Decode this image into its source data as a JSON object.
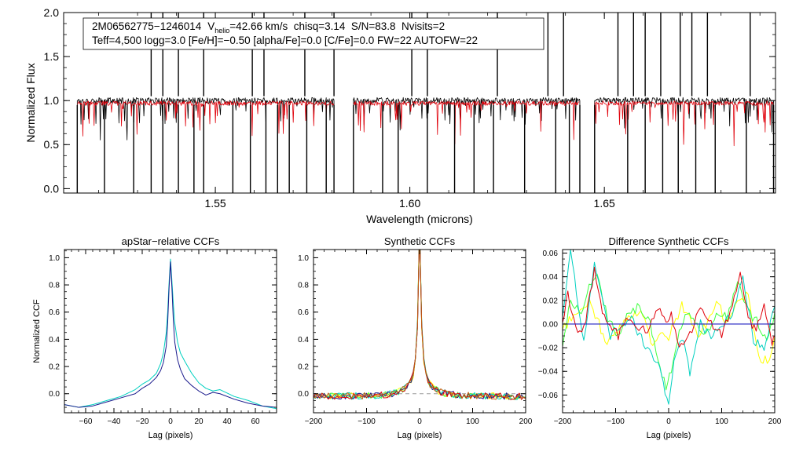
{
  "chart_data": [
    {
      "type": "line",
      "id": "spectrum",
      "title": "",
      "header_line1": {
        "object": "2M06562775−1246014",
        "v_prefix": "V",
        "v_sub": "helio",
        "v_rest": "=42.66 km/s  chisq=3.14  S/N=83.8  Nvisits=2"
      },
      "header_line2": "Teff=4,500 logg=3.0 [Fe/H]=−0.50 [alpha/Fe]=0.0 [C/Fe]=0.0 FW=22 AUTOFW=22",
      "xlabel": "Wavelength (microns)",
      "ylabel": "Normalized Flux",
      "xlim": [
        1.511,
        1.694
      ],
      "ylim": [
        -0.05,
        2.0
      ],
      "xticks": [
        1.55,
        1.6,
        1.65
      ],
      "xtick_labels": [
        "1.55",
        "1.60",
        "1.65"
      ],
      "yticks": [
        0.0,
        0.5,
        1.0,
        1.5,
        2.0
      ],
      "ytick_labels": [
        "0.0",
        "0.5",
        "1.0",
        "1.5",
        "2.0"
      ],
      "chips": [
        [
          1.5145,
          1.5805
        ],
        [
          1.5855,
          1.6437
        ],
        [
          1.6475,
          1.6935
        ]
      ],
      "series": [
        {
          "name": "observed",
          "color": "#000000",
          "level": 1.0
        },
        {
          "name": "model",
          "color": "#e0000a",
          "level": 0.97
        }
      ],
      "deep_lines": [
        1.5145,
        1.5215,
        1.529,
        1.5335,
        1.5365,
        1.5405,
        1.5445,
        1.547,
        1.5545,
        1.559,
        1.563,
        1.566,
        1.569,
        1.5735,
        1.5785,
        1.5805,
        1.5855,
        1.593,
        1.597,
        1.6045,
        1.6115,
        1.6165,
        1.6215,
        1.6295,
        1.6375,
        1.641,
        1.6437,
        1.6475,
        1.656,
        1.6605,
        1.665,
        1.669,
        1.6735,
        1.6785,
        1.6865,
        1.6935
      ],
      "high_spikes": [
        1.5335,
        1.5365,
        1.5405,
        1.547,
        1.5595,
        1.5625,
        1.573,
        1.5805,
        1.6005,
        1.6045,
        1.6225,
        1.6355,
        1.6395,
        1.6535,
        1.6575,
        1.6605,
        1.6645,
        1.6695,
        1.6725,
        1.6765,
        1.6875
      ]
    },
    {
      "type": "line",
      "id": "apstar",
      "title": "apStar−relative CCFs",
      "xlabel": "Lag (pixels)",
      "ylabel": "Normalized CCF",
      "xlim": [
        -75,
        75
      ],
      "ylim": [
        -0.14,
        1.06
      ],
      "xticks": [
        -60,
        -40,
        -20,
        0,
        20,
        40,
        60
      ],
      "xtick_labels": [
        "−60",
        "−40",
        "−20",
        "0",
        "20",
        "40",
        "60"
      ],
      "yticks": [
        0.0,
        0.2,
        0.4,
        0.6,
        0.8,
        1.0
      ],
      "ytick_labels": [
        "0.0",
        "0.2",
        "0.4",
        "0.6",
        "0.8",
        "1.0"
      ],
      "series": [
        {
          "name": "visit 1",
          "color": "#00d0c0",
          "x": [
            -75,
            -65,
            -55,
            -45,
            -35,
            -25,
            -20,
            -15,
            -10,
            -7,
            -5,
            -3,
            -2,
            -1,
            0,
            1,
            2,
            3,
            5,
            7,
            10,
            15,
            20,
            25,
            30,
            35,
            45,
            55,
            65,
            75
          ],
          "y": [
            -0.08,
            -0.1,
            -0.08,
            -0.05,
            -0.02,
            0.03,
            0.07,
            0.1,
            0.15,
            0.22,
            0.3,
            0.45,
            0.6,
            0.82,
            0.99,
            0.83,
            0.66,
            0.52,
            0.38,
            0.3,
            0.24,
            0.15,
            0.08,
            0.04,
            0.02,
            0.03,
            -0.02,
            -0.05,
            -0.09,
            -0.11
          ]
        },
        {
          "name": "visit 2",
          "color": "#1a1a8c",
          "x": [
            -75,
            -65,
            -55,
            -45,
            -35,
            -25,
            -20,
            -15,
            -10,
            -7,
            -5,
            -3,
            -2,
            -1,
            0,
            1,
            2,
            3,
            5,
            7,
            10,
            15,
            20,
            25,
            30,
            35,
            45,
            55,
            65,
            75
          ],
          "y": [
            -0.08,
            -0.1,
            -0.09,
            -0.06,
            -0.03,
            0.0,
            0.04,
            0.07,
            0.12,
            0.17,
            0.23,
            0.35,
            0.52,
            0.78,
            0.97,
            0.78,
            0.54,
            0.38,
            0.25,
            0.18,
            0.11,
            0.06,
            0.02,
            -0.01,
            0.01,
            0.0,
            -0.04,
            -0.07,
            -0.09,
            -0.1
          ]
        }
      ]
    },
    {
      "type": "line",
      "id": "synthetic",
      "title": "Synthetic CCFs",
      "xlabel": "Lag (pixels)",
      "ylabel": "",
      "xlim": [
        -200,
        200
      ],
      "ylim": [
        -0.14,
        1.06
      ],
      "xticks": [
        -200,
        -100,
        0,
        100,
        200
      ],
      "xtick_labels": [
        "−200",
        "−100",
        "0",
        "100",
        "200"
      ],
      "yticks": [
        0.0,
        0.2,
        0.4,
        0.6,
        0.8,
        1.0
      ],
      "ytick_labels": [
        "0.0",
        "0.2",
        "0.4",
        "0.6",
        "0.8",
        "1.0"
      ],
      "zero_line": true,
      "series": [
        {
          "name": "a",
          "color": "#ffff00"
        },
        {
          "name": "b",
          "color": "#40ff40"
        },
        {
          "name": "c",
          "color": "#00d0c0"
        },
        {
          "name": "d",
          "color": "#1a1a8c"
        },
        {
          "name": "e",
          "color": "#e0000a"
        },
        {
          "name": "f",
          "color": "#c06010"
        }
      ]
    },
    {
      "type": "line",
      "id": "difference",
      "title": "Difference Synthetic CCFs",
      "xlabel": "Lag (pixels)",
      "ylabel": "",
      "xlim": [
        -200,
        200
      ],
      "ylim": [
        -0.075,
        0.063
      ],
      "xticks": [
        -200,
        -100,
        0,
        100,
        200
      ],
      "xtick_labels": [
        "−200",
        "−100",
        "0",
        "100",
        "200"
      ],
      "yticks": [
        -0.06,
        -0.04,
        -0.02,
        0.0,
        0.02,
        0.04,
        0.06
      ],
      "ytick_labels": [
        "−0.06",
        "−0.04",
        "−0.02",
        "0.00",
        "0.02",
        "0.04",
        "0.06"
      ],
      "zero_line": true,
      "series": [
        {
          "name": "yellow",
          "color": "#ffff00",
          "x": [
            -200,
            -175,
            -150,
            -135,
            -120,
            -100,
            -80,
            -60,
            -45,
            -30,
            -15,
            0,
            10,
            25,
            40,
            55,
            70,
            90,
            110,
            130,
            150,
            170,
            190,
            200
          ],
          "y": [
            -0.005,
            0.01,
            0.02,
            0.005,
            -0.015,
            -0.01,
            0.005,
            0.01,
            0.005,
            -0.02,
            -0.005,
            -0.01,
            0.0,
            0.015,
            0.005,
            -0.01,
            0.0,
            0.02,
            0.0,
            0.018,
            0.025,
            -0.03,
            -0.03,
            -0.01
          ]
        },
        {
          "name": "green",
          "color": "#40ff40",
          "x": [
            -200,
            -185,
            -165,
            -150,
            -135,
            -115,
            -95,
            -75,
            -55,
            -35,
            -20,
            -5,
            5,
            20,
            35,
            50,
            70,
            90,
            110,
            130,
            150,
            170,
            185,
            200
          ],
          "y": [
            -0.02,
            0.02,
            0.01,
            0.03,
            0.04,
            0.005,
            -0.01,
            0.01,
            0.015,
            0.0,
            -0.03,
            -0.055,
            -0.04,
            -0.005,
            0.01,
            0.0,
            -0.01,
            0.01,
            0.005,
            0.035,
            0.01,
            0.0,
            -0.015,
            0.01
          ]
        },
        {
          "name": "cyan",
          "color": "#00d0c0",
          "x": [
            -200,
            -185,
            -170,
            -160,
            -140,
            -125,
            -110,
            -90,
            -70,
            -55,
            -40,
            -20,
            -10,
            0,
            10,
            25,
            40,
            60,
            80,
            100,
            120,
            140,
            160,
            180,
            200
          ],
          "y": [
            0.005,
            0.06,
            0.015,
            -0.015,
            0.05,
            0.02,
            -0.01,
            0.0,
            0.005,
            -0.01,
            -0.02,
            -0.035,
            -0.05,
            -0.07,
            -0.03,
            -0.01,
            -0.04,
            0.0,
            -0.01,
            -0.005,
            0.01,
            0.04,
            -0.015,
            -0.02,
            0.015
          ]
        },
        {
          "name": "red",
          "color": "#e0000a",
          "x": [
            -200,
            -190,
            -175,
            -160,
            -140,
            -125,
            -110,
            -95,
            -80,
            -60,
            -40,
            -20,
            -5,
            5,
            20,
            40,
            60,
            80,
            100,
            120,
            135,
            150,
            165,
            180,
            195,
            200
          ],
          "y": [
            0.0,
            0.025,
            -0.005,
            -0.005,
            0.045,
            0.01,
            0.0,
            -0.01,
            0.005,
            -0.005,
            -0.005,
            0.015,
            0.0,
            0.01,
            -0.02,
            -0.01,
            0.015,
            0.0,
            -0.01,
            0.015,
            0.042,
            0.005,
            -0.005,
            0.015,
            -0.015,
            -0.01
          ]
        }
      ]
    }
  ]
}
